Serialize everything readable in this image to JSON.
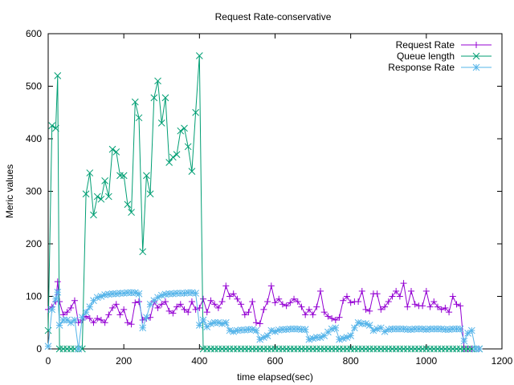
{
  "chart_data": {
    "type": "line",
    "title": "Request Rate-conservative",
    "xlabel": "time elapsed(sec)",
    "ylabel": "Meric values",
    "xlim": [
      0,
      1200
    ],
    "ylim": [
      0,
      600
    ],
    "xticks": [
      0,
      200,
      400,
      600,
      800,
      1000,
      1200
    ],
    "yticks": [
      0,
      100,
      200,
      300,
      400,
      500,
      600
    ],
    "grid": false,
    "legend_position": "top-right",
    "series": [
      {
        "name": "Request Rate",
        "color": "#9400d3",
        "marker": "plus",
        "x": [
          0,
          10,
          20,
          25,
          30,
          40,
          50,
          60,
          70,
          80,
          90,
          100,
          110,
          120,
          130,
          140,
          150,
          160,
          170,
          180,
          190,
          200,
          210,
          220,
          230,
          240,
          250,
          260,
          270,
          280,
          290,
          300,
          310,
          320,
          330,
          340,
          350,
          360,
          370,
          380,
          390,
          400,
          410,
          420,
          430,
          440,
          450,
          460,
          470,
          480,
          490,
          500,
          510,
          520,
          530,
          540,
          550,
          560,
          570,
          580,
          590,
          600,
          610,
          620,
          630,
          640,
          650,
          660,
          670,
          680,
          690,
          700,
          710,
          720,
          730,
          740,
          750,
          760,
          770,
          780,
          790,
          800,
          810,
          820,
          830,
          840,
          850,
          860,
          870,
          880,
          890,
          900,
          910,
          920,
          930,
          940,
          950,
          960,
          970,
          980,
          990,
          1000,
          1010,
          1020,
          1030,
          1040,
          1050,
          1060,
          1070,
          1080,
          1090,
          1100,
          1110,
          1120,
          1130,
          1140
        ],
        "y": [
          75,
          80,
          90,
          128,
          90,
          65,
          70,
          78,
          92,
          50,
          55,
          62,
          58,
          50,
          58,
          55,
          50,
          65,
          78,
          85,
          65,
          75,
          50,
          47,
          88,
          90,
          55,
          58,
          60,
          90,
          78,
          85,
          90,
          72,
          68,
          80,
          85,
          75,
          70,
          90,
          75,
          78,
          95,
          70,
          92,
          85,
          78,
          90,
          120,
          100,
          105,
          95,
          85,
          65,
          70,
          90,
          50,
          48,
          75,
          90,
          120,
          88,
          95,
          85,
          82,
          88,
          95,
          90,
          80,
          65,
          75,
          65,
          80,
          110,
          70,
          62,
          58,
          55,
          60,
          92,
          100,
          88,
          90,
          90,
          110,
          75,
          72,
          105,
          105,
          75,
          80,
          90,
          100,
          110,
          100,
          125,
          80,
          110,
          85,
          82,
          82,
          110,
          80,
          90,
          80,
          75,
          78,
          70,
          100,
          85,
          82,
          0,
          0,
          0,
          0,
          0
        ]
      },
      {
        "name": "Queue length",
        "color": "#009e73",
        "marker": "x",
        "x": [
          0,
          10,
          20,
          25,
          30,
          40,
          50,
          60,
          70,
          80,
          90,
          100,
          110,
          120,
          130,
          140,
          150,
          160,
          170,
          180,
          190,
          200,
          210,
          220,
          230,
          240,
          250,
          260,
          270,
          280,
          290,
          300,
          310,
          320,
          330,
          340,
          350,
          360,
          370,
          380,
          390,
          400,
          410,
          420,
          430,
          440,
          450,
          460,
          470,
          480,
          490,
          500,
          510,
          520,
          530,
          540,
          550,
          560,
          570,
          580,
          590,
          600,
          610,
          620,
          630,
          640,
          650,
          660,
          670,
          680,
          690,
          700,
          710,
          720,
          730,
          740,
          750,
          760,
          770,
          780,
          790,
          800,
          810,
          820,
          830,
          840,
          850,
          860,
          870,
          880,
          890,
          900,
          910,
          920,
          930,
          940,
          950,
          960,
          970,
          980,
          990,
          1000,
          1010,
          1020,
          1030,
          1040,
          1050,
          1060,
          1070,
          1080,
          1090,
          1100,
          1110,
          1120,
          1130,
          1140
        ],
        "y": [
          35,
          425,
          420,
          520,
          0,
          0,
          0,
          0,
          0,
          0,
          0,
          295,
          335,
          255,
          290,
          285,
          320,
          290,
          380,
          375,
          330,
          330,
          275,
          260,
          470,
          440,
          185,
          330,
          295,
          478,
          510,
          430,
          478,
          355,
          365,
          370,
          415,
          420,
          385,
          338,
          450,
          558,
          0,
          0,
          0,
          0,
          0,
          0,
          0,
          0,
          0,
          0,
          0,
          0,
          0,
          0,
          0,
          0,
          0,
          0,
          0,
          0,
          0,
          0,
          0,
          0,
          0,
          0,
          0,
          0,
          0,
          0,
          0,
          0,
          0,
          0,
          0,
          0,
          0,
          0,
          0,
          0,
          0,
          0,
          0,
          0,
          0,
          0,
          0,
          0,
          0,
          0,
          0,
          0,
          0,
          0,
          0,
          0,
          0,
          0,
          0,
          0,
          0,
          0,
          0,
          0,
          0,
          0,
          0,
          0,
          0,
          0,
          0,
          0,
          0,
          0
        ]
      },
      {
        "name": "Response Rate",
        "color": "#56b4e9",
        "marker": "star",
        "x": [
          0,
          10,
          20,
          25,
          30,
          40,
          50,
          60,
          70,
          80,
          90,
          100,
          110,
          120,
          130,
          140,
          150,
          160,
          170,
          180,
          190,
          200,
          210,
          220,
          230,
          240,
          250,
          260,
          270,
          280,
          290,
          300,
          310,
          320,
          330,
          340,
          350,
          360,
          370,
          380,
          390,
          400,
          410,
          420,
          430,
          440,
          450,
          460,
          470,
          480,
          490,
          500,
          510,
          520,
          530,
          540,
          550,
          560,
          570,
          580,
          590,
          600,
          610,
          620,
          630,
          640,
          650,
          660,
          670,
          680,
          690,
          700,
          710,
          720,
          730,
          740,
          750,
          760,
          770,
          780,
          790,
          800,
          810,
          820,
          830,
          840,
          850,
          860,
          870,
          880,
          890,
          900,
          910,
          920,
          930,
          940,
          950,
          960,
          970,
          980,
          990,
          1000,
          1010,
          1020,
          1030,
          1040,
          1050,
          1060,
          1070,
          1080,
          1090,
          1100,
          1110,
          1120,
          1130,
          1140
        ],
        "y": [
          5,
          75,
          95,
          108,
          45,
          55,
          55,
          50,
          55,
          0,
          60,
          70,
          80,
          92,
          98,
          100,
          103,
          104,
          105,
          105,
          106,
          106,
          107,
          107,
          107,
          105,
          40,
          60,
          85,
          92,
          98,
          102,
          104,
          105,
          105,
          106,
          106,
          106,
          107,
          107,
          106,
          45,
          55,
          42,
          48,
          50,
          50,
          48,
          50,
          35,
          33,
          35,
          36,
          36,
          37,
          37,
          35,
          18,
          22,
          25,
          35,
          33,
          36,
          37,
          37,
          38,
          38,
          38,
          37,
          37,
          18,
          20,
          22,
          22,
          25,
          32,
          38,
          40,
          18,
          20,
          22,
          25,
          40,
          50,
          48,
          48,
          45,
          35,
          38,
          40,
          33,
          37,
          38,
          38,
          38,
          38,
          37,
          37,
          38,
          38,
          38,
          37,
          38,
          38,
          38,
          38,
          37,
          37,
          38,
          38,
          38,
          15,
          30,
          35,
          0,
          0
        ]
      }
    ]
  }
}
